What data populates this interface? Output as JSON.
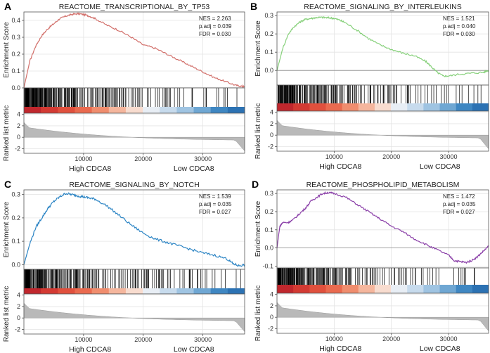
{
  "chart_data": [
    {
      "type": "line",
      "panel_label": "A",
      "title": "REACTOME_TRANSCRIPTIONAL_BY_TP53",
      "color": "#d2706b",
      "stats": [
        "NES = 2.263",
        "p.adj = 0.039",
        "FDR = 0.030"
      ],
      "ylabel": "Enrichment Score",
      "ylim": [
        0.0,
        0.45
      ],
      "yticks": [
        0.0,
        0.1,
        0.2,
        0.3,
        0.4
      ],
      "x": [
        0,
        1000,
        2000,
        3000,
        4000,
        5000,
        6000,
        7000,
        8000,
        9000,
        10000,
        11000,
        12000,
        14000,
        16000,
        18000,
        20000,
        22000,
        24000,
        26000,
        28000,
        30000,
        32000,
        34000,
        35500,
        36500,
        37000
      ],
      "values": [
        0.0,
        0.16,
        0.25,
        0.31,
        0.35,
        0.38,
        0.41,
        0.425,
        0.435,
        0.44,
        0.435,
        0.425,
        0.41,
        0.37,
        0.34,
        0.3,
        0.255,
        0.235,
        0.2,
        0.165,
        0.13,
        0.095,
        0.06,
        0.035,
        0.015,
        0.01,
        0.005
      ],
      "zero_line": false,
      "metric_label": "Ranked list metric",
      "metric_yticks": [
        -2,
        0,
        2,
        4
      ],
      "metric_ylim": [
        -2.8,
        4.2
      ],
      "xticks": [
        10000,
        20000,
        30000
      ],
      "xlim": [
        0,
        37000
      ],
      "xlabel_left": "High CDCA8",
      "xlabel_right": "Low CDCA8"
    },
    {
      "type": "line",
      "panel_label": "B",
      "title": "REACTOME_SIGNALING_BY_INTERLEUKINS",
      "color": "#86d07a",
      "stats": [
        "NES = 1.521",
        "p.adj = 0.040",
        "FDR = 0.030"
      ],
      "ylabel": "Enrichment Score",
      "ylim": [
        -0.08,
        0.32
      ],
      "yticks": [
        0.0,
        0.1,
        0.2,
        0.3
      ],
      "x": [
        0,
        1000,
        2000,
        3000,
        4000,
        5000,
        6000,
        7000,
        8000,
        9000,
        10000,
        11000,
        12000,
        14000,
        16000,
        18000,
        20000,
        22000,
        24000,
        26000,
        27000,
        28000,
        29000,
        30000,
        32000,
        34000,
        36000,
        37000
      ],
      "values": [
        0.0,
        0.12,
        0.2,
        0.24,
        0.265,
        0.28,
        0.285,
        0.29,
        0.29,
        0.288,
        0.285,
        0.275,
        0.26,
        0.22,
        0.175,
        0.14,
        0.115,
        0.095,
        0.08,
        0.05,
        0.02,
        -0.01,
        -0.03,
        -0.03,
        -0.02,
        -0.015,
        -0.01,
        0.0
      ],
      "zero_line": true,
      "metric_label": "Ranked list metric",
      "metric_yticks": [
        -2,
        0,
        2,
        4
      ],
      "metric_ylim": [
        -2.8,
        4.2
      ],
      "xticks": [
        10000,
        20000,
        30000
      ],
      "xlim": [
        0,
        37000
      ],
      "xlabel_left": "High CDCA8",
      "xlabel_right": "Low CDCA8"
    },
    {
      "type": "line",
      "panel_label": "C",
      "title": "REACTOME_SIGNALING_BY_NOTCH",
      "color": "#2b84c4",
      "stats": [
        "NES = 1.539",
        "p.adj = 0.035",
        "FDR = 0.027"
      ],
      "ylabel": "Enrichment Score",
      "ylim": [
        -0.02,
        0.32
      ],
      "yticks": [
        0.0,
        0.1,
        0.2,
        0.3
      ],
      "x": [
        0,
        1000,
        2000,
        3000,
        4000,
        5000,
        6000,
        7000,
        8000,
        9000,
        10000,
        11000,
        12000,
        14000,
        16000,
        18000,
        20000,
        22000,
        24000,
        26000,
        28000,
        30000,
        32000,
        34000,
        35000,
        36000,
        37000
      ],
      "values": [
        0.0,
        0.09,
        0.16,
        0.2,
        0.24,
        0.27,
        0.29,
        0.305,
        0.3,
        0.295,
        0.29,
        0.285,
        0.28,
        0.25,
        0.21,
        0.17,
        0.135,
        0.11,
        0.095,
        0.08,
        0.065,
        0.05,
        0.04,
        0.025,
        0.005,
        -0.005,
        0.0
      ],
      "zero_line": false,
      "metric_label": "Ranked list metric",
      "metric_yticks": [
        -2,
        0,
        2,
        4
      ],
      "metric_ylim": [
        -2.8,
        4.2
      ],
      "xticks": [
        10000,
        20000,
        30000
      ],
      "xlim": [
        0,
        37000
      ],
      "xlabel_left": "High CDCA8",
      "xlabel_right": "Low CDCA8"
    },
    {
      "type": "line",
      "panel_label": "D",
      "title": "REACTOME_PHOSPHOLIPID_METABOLISM",
      "color": "#8a3fa8",
      "stats": [
        "NES = 1.472",
        "p.adj = 0.035",
        "FDR = 0.027"
      ],
      "ylabel": "Enrichment Score",
      "ylim": [
        -0.11,
        0.32
      ],
      "yticks": [
        -0.1,
        0.0,
        0.1,
        0.2,
        0.3
      ],
      "x": [
        0,
        500,
        1000,
        2000,
        3000,
        4000,
        5000,
        6000,
        7000,
        8000,
        9000,
        10000,
        12000,
        14000,
        16000,
        18000,
        20000,
        22000,
        24000,
        26000,
        28000,
        30000,
        31000,
        32000,
        33000,
        34000,
        35000,
        36000,
        37000
      ],
      "values": [
        0.0,
        0.12,
        0.14,
        0.14,
        0.16,
        0.19,
        0.22,
        0.26,
        0.28,
        0.3,
        0.305,
        0.3,
        0.28,
        0.24,
        0.2,
        0.16,
        0.12,
        0.09,
        0.05,
        0.02,
        -0.01,
        -0.04,
        -0.07,
        -0.075,
        -0.08,
        -0.07,
        -0.05,
        -0.02,
        0.01
      ],
      "zero_line": true,
      "metric_label": "Ranked list metric",
      "metric_yticks": [
        -2,
        0,
        2,
        4
      ],
      "metric_ylim": [
        -2.8,
        4.2
      ],
      "xticks": [
        10000,
        20000,
        30000
      ],
      "xlim": [
        0,
        37000
      ],
      "xlabel_left": "High CDCA8",
      "xlabel_right": "Low CDCA8"
    }
  ]
}
